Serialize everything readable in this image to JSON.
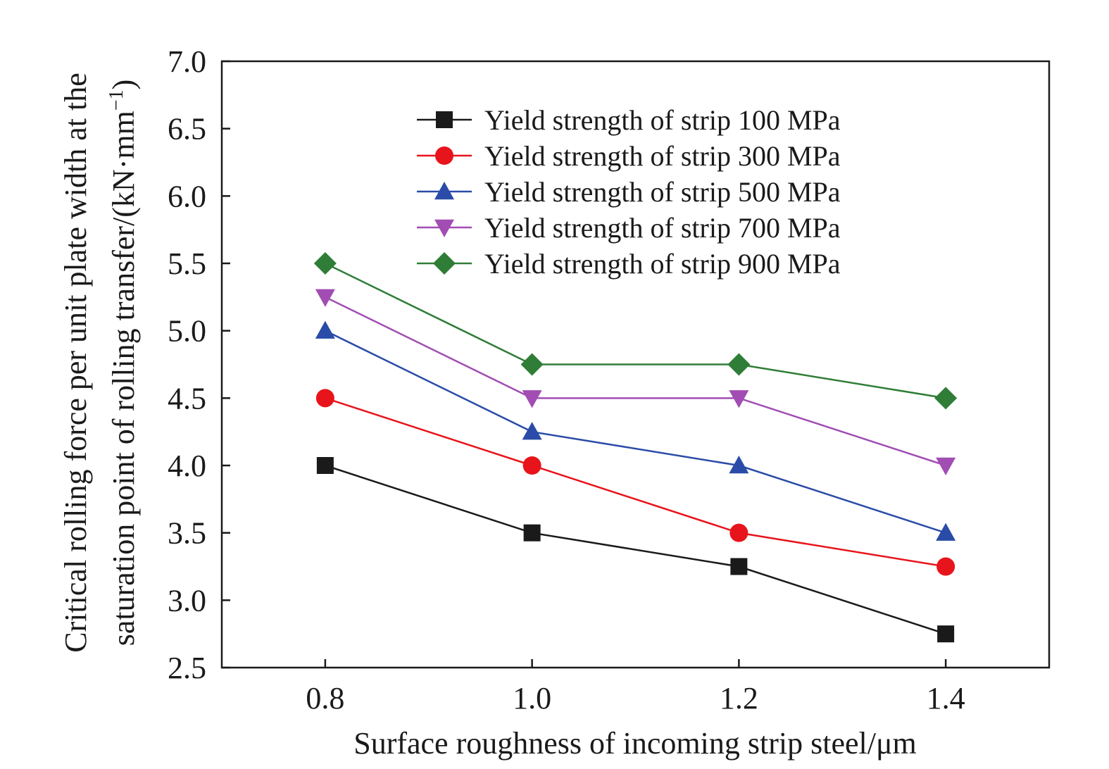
{
  "chart_data": {
    "type": "line",
    "xlabel": "Surface roughness of incoming strip steel/μm",
    "ylabel_line1": "Critical rolling force per unit plate width at the",
    "ylabel_line2": "saturation point of rolling transfer/(kN·mm",
    "ylabel_superscript": "−1",
    "ylabel_suffix": ")",
    "x": [
      0.8,
      1.0,
      1.2,
      1.4
    ],
    "x_tick_labels": [
      "0.8",
      "1.0",
      "1.2",
      "1.4"
    ],
    "xlim": [
      0.7,
      1.5
    ],
    "ylim": [
      2.5,
      7.0
    ],
    "y_ticks": [
      2.5,
      3.0,
      3.5,
      4.0,
      4.5,
      5.0,
      5.5,
      6.0,
      6.5,
      7.0
    ],
    "y_tick_labels": [
      "2.5",
      "3.0",
      "3.5",
      "4.0",
      "4.5",
      "5.0",
      "5.5",
      "6.0",
      "6.5",
      "7.0"
    ],
    "grid": false,
    "legend_position": "top-right",
    "series": [
      {
        "name": "Yield strength of strip 100 MPa",
        "values": [
          4.0,
          3.5,
          3.25,
          2.75
        ],
        "color": "#1a1a1a",
        "marker": "square"
      },
      {
        "name": "Yield strength of strip 300 MPa",
        "values": [
          4.5,
          4.0,
          3.5,
          3.25
        ],
        "color": "#e8141b",
        "marker": "circle"
      },
      {
        "name": "Yield strength of strip 500 MPa",
        "values": [
          5.0,
          4.25,
          4.0,
          3.5
        ],
        "color": "#2a4ca8",
        "marker": "triangle-up"
      },
      {
        "name": "Yield strength of strip 700 MPa",
        "values": [
          5.25,
          4.5,
          4.5,
          4.0
        ],
        "color": "#a14db3",
        "marker": "triangle-down"
      },
      {
        "name": "Yield strength of strip 900 MPa",
        "values": [
          5.5,
          4.75,
          4.75,
          4.5
        ],
        "color": "#2f7d36",
        "marker": "diamond"
      }
    ]
  }
}
